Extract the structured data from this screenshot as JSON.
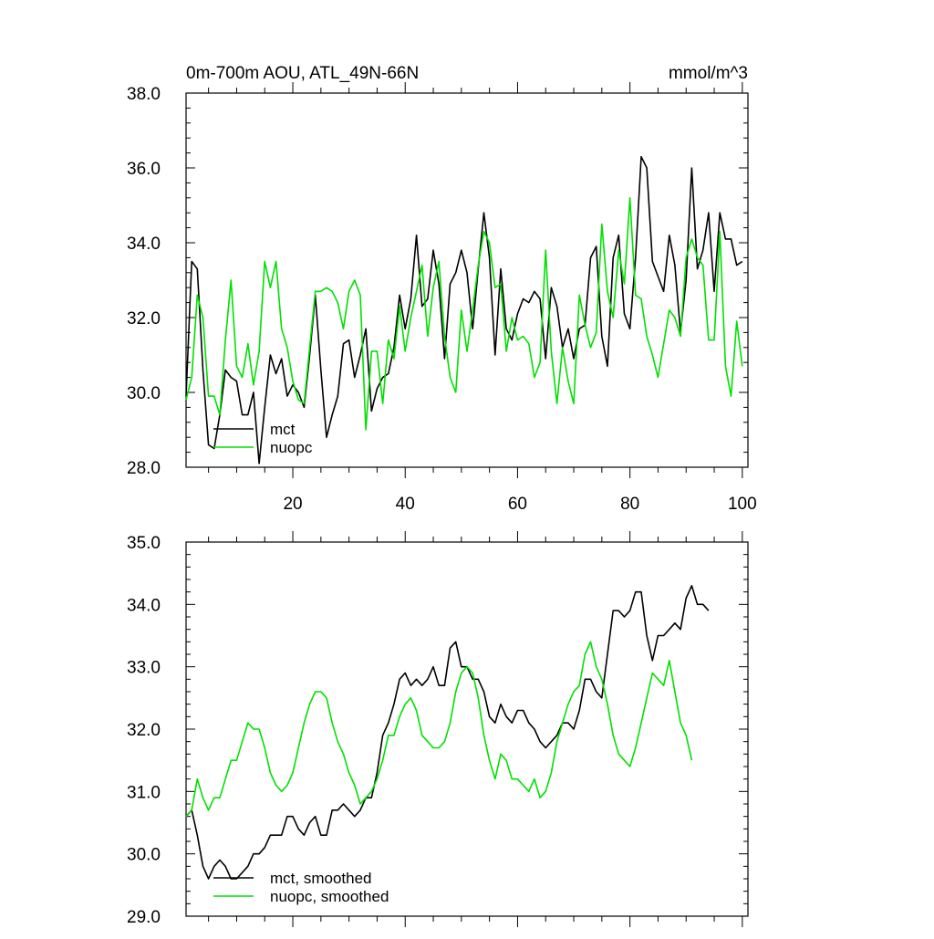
{
  "chart_data": [
    {
      "type": "line",
      "title": "0m-700m AOU, ATL_49N-66N",
      "units": "mmol/m^3",
      "xlabel": "",
      "ylabel": "",
      "xlim": [
        1,
        101
      ],
      "ylim": [
        28.0,
        38.0
      ],
      "yticks": [
        28.0,
        30.0,
        32.0,
        34.0,
        36.0,
        38.0
      ],
      "ytick_labels": [
        "28.0",
        "30.0",
        "32.0",
        "34.0",
        "36.0",
        "38.0"
      ],
      "xticks": [
        20,
        40,
        60,
        80,
        100
      ],
      "xtick_labels": [
        "20",
        "40",
        "60",
        "80",
        "100"
      ],
      "legend_position": "bottom-left",
      "series": [
        {
          "name": "mct",
          "color": "#000000",
          "values": [
            29.9,
            33.5,
            33.3,
            30.6,
            28.6,
            28.5,
            29.4,
            30.6,
            30.4,
            30.3,
            29.4,
            29.4,
            30.0,
            28.1,
            29.6,
            31.0,
            30.5,
            30.9,
            29.9,
            30.2,
            30.0,
            29.6,
            31.0,
            32.6,
            30.6,
            28.8,
            29.4,
            29.9,
            31.3,
            31.4,
            30.4,
            31.0,
            31.7,
            29.5,
            30.1,
            30.4,
            30.5,
            31.2,
            32.6,
            31.7,
            32.5,
            34.2,
            32.3,
            32.5,
            33.8,
            32.9,
            30.9,
            32.9,
            33.2,
            33.8,
            33.2,
            31.7,
            33.3,
            34.8,
            33.6,
            31.0,
            33.3,
            31.7,
            31.4,
            32.1,
            32.5,
            32.4,
            32.7,
            32.5,
            30.9,
            32.8,
            32.3,
            31.2,
            31.7,
            30.9,
            31.7,
            31.8,
            33.6,
            33.9,
            31.5,
            30.7,
            33.6,
            34.2,
            32.1,
            31.7,
            33.6,
            36.3,
            36.0,
            33.5,
            33.1,
            32.7,
            34.2,
            33.4,
            31.6,
            33.0,
            36.0,
            33.3,
            33.8,
            34.8,
            32.7,
            34.8,
            34.1,
            34.1,
            33.4,
            33.5
          ]
        },
        {
          "name": "nuopc",
          "color": "#00e000",
          "values": [
            29.8,
            30.4,
            32.6,
            32.0,
            29.9,
            29.9,
            29.4,
            31.4,
            33.0,
            30.7,
            30.4,
            31.3,
            30.2,
            31.1,
            33.5,
            32.8,
            33.5,
            31.7,
            31.2,
            30.3,
            29.8,
            29.7,
            31.2,
            32.7,
            32.7,
            32.8,
            32.7,
            32.4,
            31.7,
            32.7,
            33.0,
            32.6,
            29.0,
            31.1,
            31.1,
            29.7,
            31.4,
            30.9,
            32.3,
            31.1,
            32.0,
            32.7,
            33.4,
            31.5,
            32.8,
            33.5,
            31.5,
            30.4,
            30.0,
            32.2,
            31.1,
            32.2,
            33.4,
            34.3,
            34.0,
            32.8,
            32.9,
            31.1,
            32.0,
            31.4,
            31.5,
            31.3,
            30.4,
            30.8,
            33.8,
            31.1,
            29.7,
            31.2,
            30.3,
            29.7,
            32.6,
            31.8,
            31.2,
            31.6,
            34.5,
            32.7,
            32.0,
            33.8,
            32.9,
            35.2,
            32.6,
            32.5,
            31.5,
            31.0,
            30.4,
            31.3,
            32.2,
            32.0,
            31.5,
            33.6,
            34.1,
            33.6,
            33.4,
            31.4,
            31.4,
            34.3,
            30.7,
            29.9,
            31.9,
            30.7
          ]
        }
      ]
    },
    {
      "type": "line",
      "title": "",
      "xlabel": "",
      "ylabel": "",
      "xlim": [
        1,
        101
      ],
      "ylim": [
        29.0,
        35.0
      ],
      "yticks": [
        29.0,
        30.0,
        31.0,
        32.0,
        33.0,
        34.0,
        35.0
      ],
      "ytick_labels": [
        "29.0",
        "30.0",
        "31.0",
        "32.0",
        "33.0",
        "34.0",
        "35.0"
      ],
      "xticks": [
        20,
        40,
        60,
        80,
        100
      ],
      "legend_position": "bottom-left",
      "series": [
        {
          "name": "mct, smoothed",
          "color": "#000000",
          "values": [
            30.6,
            30.7,
            30.3,
            29.8,
            29.6,
            29.8,
            29.9,
            29.8,
            29.6,
            29.6,
            29.7,
            29.8,
            30.0,
            30.0,
            30.1,
            30.3,
            30.3,
            30.3,
            30.6,
            30.6,
            30.4,
            30.3,
            30.5,
            30.6,
            30.3,
            30.3,
            30.7,
            30.7,
            30.8,
            30.7,
            30.6,
            30.7,
            30.9,
            30.9,
            31.3,
            31.9,
            32.1,
            32.4,
            32.8,
            32.9,
            32.7,
            32.8,
            32.7,
            32.8,
            33.0,
            32.7,
            32.7,
            33.3,
            33.4,
            33.0,
            33.0,
            32.8,
            32.8,
            32.6,
            32.2,
            32.1,
            32.4,
            32.2,
            32.1,
            32.3,
            32.3,
            32.1,
            32.0,
            31.8,
            31.7,
            31.8,
            31.9,
            32.1,
            32.1,
            32.0,
            32.3,
            32.8,
            32.8,
            32.6,
            32.5,
            33.2,
            33.9,
            33.9,
            33.8,
            33.9,
            34.2,
            34.2,
            33.5,
            33.1,
            33.5,
            33.5,
            33.6,
            33.7,
            33.6,
            34.1,
            34.3,
            34.0,
            34.0,
            33.9
          ]
        },
        {
          "name": "nuopc, smoothed",
          "color": "#00e000",
          "values": [
            30.6,
            30.7,
            31.2,
            30.9,
            30.7,
            30.9,
            30.9,
            31.2,
            31.5,
            31.5,
            31.8,
            32.1,
            32.0,
            32.0,
            31.7,
            31.3,
            31.1,
            31.0,
            31.1,
            31.3,
            31.7,
            32.1,
            32.4,
            32.6,
            32.6,
            32.5,
            32.1,
            31.8,
            31.6,
            31.3,
            31.1,
            30.8,
            30.9,
            31.0,
            31.2,
            31.5,
            31.9,
            31.9,
            32.2,
            32.4,
            32.5,
            32.3,
            31.9,
            31.8,
            31.7,
            31.7,
            31.8,
            32.1,
            32.6,
            32.9,
            33.0,
            32.9,
            32.5,
            31.9,
            31.5,
            31.2,
            31.6,
            31.5,
            31.2,
            31.2,
            31.1,
            31.0,
            31.2,
            30.9,
            31.0,
            31.3,
            31.8,
            32.1,
            32.4,
            32.6,
            32.7,
            33.2,
            33.4,
            33.0,
            32.8,
            32.4,
            31.9,
            31.6,
            31.5,
            31.4,
            31.7,
            32.1,
            32.5,
            32.9,
            32.8,
            32.7,
            33.1,
            32.6,
            32.1,
            31.9,
            31.5
          ]
        }
      ]
    }
  ]
}
